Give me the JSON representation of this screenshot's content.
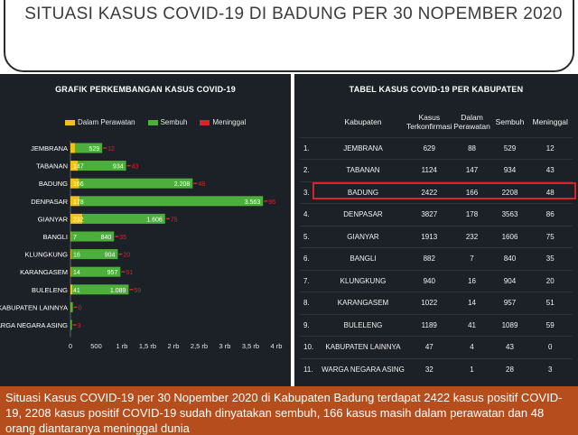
{
  "header": {
    "title": "SITUASI KASUS COVID-19 DI BADUNG PER 30 NOPEMBER 2020"
  },
  "chart_panel": {
    "title": "GRAFIK PERKEMBANGAN KASUS COVID-19"
  },
  "table_panel": {
    "title": "TABEL KASUS COVID-19 PER KABUPATEN"
  },
  "colors": {
    "perawatan": "#f2c21b",
    "sembuh": "#4caf3c",
    "meninggal": "#d8232a"
  },
  "chart_data": {
    "type": "bar",
    "orientation": "horizontal",
    "stacked": true,
    "categories": [
      "JEMBRANA",
      "TABANAN",
      "BADUNG",
      "DENPASAR",
      "GIANYAR",
      "BANGLI",
      "KLUNGKUNG",
      "KARANGASEM",
      "BULELENG",
      "KABUPATEN LAINNYA",
      "WARGA NEGARA ASING"
    ],
    "series": [
      {
        "name": "Dalam Perawatan",
        "values": [
          88,
          147,
          166,
          178,
          232,
          7,
          16,
          14,
          41,
          4,
          1
        ]
      },
      {
        "name": "Sembuh",
        "values": [
          529,
          934,
          2208,
          3563,
          1606,
          840,
          904,
          957,
          1089,
          43,
          28
        ]
      },
      {
        "name": "Meninggal",
        "values": [
          12,
          43,
          48,
          86,
          75,
          35,
          20,
          51,
          59,
          0,
          3
        ]
      }
    ],
    "bar_labels": [
      [
        "",
        "529",
        "12"
      ],
      [
        "147",
        "934",
        "43"
      ],
      [
        "166",
        "2.208",
        "48"
      ],
      [
        "178",
        "3.563",
        "86"
      ],
      [
        "232",
        "1.606",
        "75"
      ],
      [
        "7",
        "840",
        "35"
      ],
      [
        "16",
        "904",
        "20"
      ],
      [
        "14",
        "957",
        "51"
      ],
      [
        "41",
        "1.089",
        "59"
      ],
      [
        "",
        "",
        "0"
      ],
      [
        "",
        "",
        "3"
      ]
    ],
    "xlim": [
      0,
      4000
    ],
    "xticks": [
      "0",
      "500",
      "1 rb",
      "1,5 rb",
      "2 rb",
      "2,5 rb",
      "3 rb",
      "3,5 rb",
      "4 rb"
    ],
    "legend": "top"
  },
  "table": {
    "headers": [
      "",
      "Kabupaten",
      "Kasus Terkonfirmasi",
      "Dalam Perawatan",
      "Sembuh",
      "Meninggal"
    ],
    "rows": [
      [
        "1.",
        "JEMBRANA",
        "629",
        "88",
        "529",
        "12"
      ],
      [
        "2.",
        "TABANAN",
        "1124",
        "147",
        "934",
        "43"
      ],
      [
        "3.",
        "BADUNG",
        "2422",
        "166",
        "2208",
        "48"
      ],
      [
        "4.",
        "DENPASAR",
        "3827",
        "178",
        "3563",
        "86"
      ],
      [
        "5.",
        "GIANYAR",
        "1913",
        "232",
        "1606",
        "75"
      ],
      [
        "6.",
        "BANGLI",
        "882",
        "7",
        "840",
        "35"
      ],
      [
        "7.",
        "KLUNGKUNG",
        "940",
        "16",
        "904",
        "20"
      ],
      [
        "8.",
        "KARANGASEM",
        "1022",
        "14",
        "957",
        "51"
      ],
      [
        "9.",
        "BULELENG",
        "1189",
        "41",
        "1089",
        "59"
      ],
      [
        "10.",
        "KABUPATEN LAINNYA",
        "47",
        "4",
        "43",
        "0"
      ],
      [
        "11.",
        "WARGA NEGARA ASING",
        "32",
        "1",
        "28",
        "3"
      ]
    ],
    "highlight_row": 2
  },
  "caption": {
    "text": "Situasi Kasus COVID-19 per 30 Nopember 2020 di Kabupaten Badung terdapat 2422 kasus positif COVID-19, 2208 kasus positif COVID-19 sudah dinyatakan sembuh, 166 kasus masih dalam perawatan dan 48 orang diantaranya meninggal dunia"
  }
}
